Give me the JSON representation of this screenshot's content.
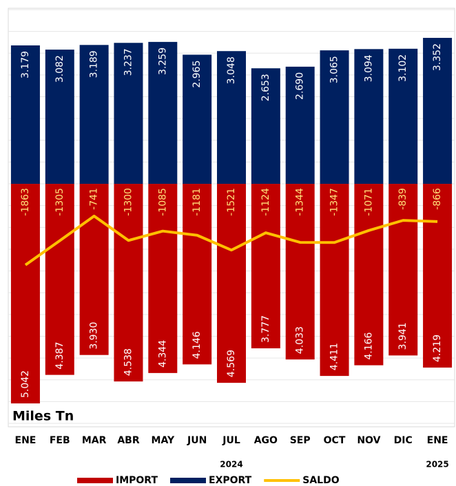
{
  "chart_data": {
    "type": "bar",
    "unit_label": "Miles Tn",
    "categories": [
      "ENE",
      "FEB",
      "MAR",
      "ABR",
      "MAY",
      "JUN",
      "JUL",
      "AGO",
      "SEP",
      "OCT",
      "NOV",
      "DIC",
      "ENE"
    ],
    "category_years": [
      null,
      null,
      null,
      null,
      null,
      null,
      "2024",
      null,
      null,
      null,
      null,
      null,
      "2025"
    ],
    "series": [
      {
        "name": "IMPORT",
        "color": "#c00000",
        "values": [
          -5042,
          -4387,
          -3930,
          -4538,
          -4344,
          -4146,
          -4569,
          -3777,
          -4033,
          -4411,
          -4166,
          -3941,
          -4219
        ],
        "value_labels": [
          "5.042",
          "4.387",
          "3.930",
          "4.538",
          "4.344",
          "4.146",
          "4.569",
          "3.777",
          "4.033",
          "4.411",
          "4.166",
          "3.941",
          "4.219"
        ]
      },
      {
        "name": "EXPORT",
        "color": "#002060",
        "values": [
          3179,
          3082,
          3189,
          3237,
          3259,
          2965,
          3048,
          2653,
          2690,
          3065,
          3094,
          3102,
          3352
        ],
        "value_labels": [
          "3.179",
          "3.082",
          "3.189",
          "3.237",
          "3.259",
          "2.965",
          "3.048",
          "2.653",
          "2.690",
          "3.065",
          "3.094",
          "3.102",
          "3.352"
        ]
      },
      {
        "name": "SALDO",
        "type": "line",
        "color": "#ffc000",
        "label_color": "#ffe07a",
        "values": [
          -1863,
          -1305,
          -741,
          -1300,
          -1085,
          -1181,
          -1521,
          -1124,
          -1344,
          -1347,
          -1071,
          -839,
          -866
        ]
      }
    ],
    "ylim": [
      -5500,
      4000
    ],
    "yticks": [
      -5500,
      -5000,
      -4500,
      -4000,
      -3500,
      -3000,
      -2500,
      -2000,
      -1500,
      -1000,
      -500,
      0,
      500,
      1000,
      1500,
      2000,
      2500,
      3000,
      3500,
      4000
    ],
    "grid": true
  }
}
